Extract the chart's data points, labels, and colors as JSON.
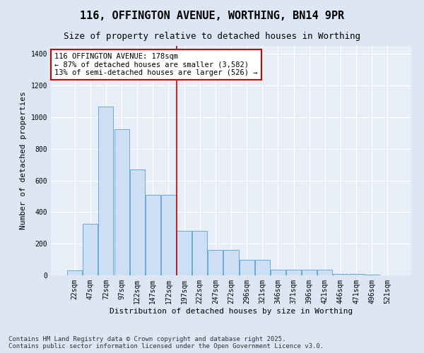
{
  "title": "116, OFFINGTON AVENUE, WORTHING, BN14 9PR",
  "subtitle": "Size of property relative to detached houses in Worthing",
  "xlabel": "Distribution of detached houses by size in Worthing",
  "ylabel": "Number of detached properties",
  "categories": [
    "22sqm",
    "47sqm",
    "72sqm",
    "97sqm",
    "122sqm",
    "147sqm",
    "172sqm",
    "197sqm",
    "222sqm",
    "247sqm",
    "272sqm",
    "296sqm",
    "321sqm",
    "346sqm",
    "371sqm",
    "396sqm",
    "421sqm",
    "446sqm",
    "471sqm",
    "496sqm",
    "521sqm"
  ],
  "values": [
    30,
    325,
    1065,
    925,
    670,
    510,
    510,
    280,
    280,
    160,
    160,
    100,
    100,
    35,
    35,
    35,
    35,
    10,
    10,
    5,
    0
  ],
  "bar_color": "#ccdff5",
  "bar_edge_color": "#6aaad4",
  "background_color": "#e8eef8",
  "grid_color": "#ffffff",
  "vline_color": "#cc0000",
  "annotation_text": "116 OFFINGTON AVENUE: 178sqm\n← 87% of detached houses are smaller (3,582)\n13% of semi-detached houses are larger (526) →",
  "annotation_box_color": "#cc0000",
  "ylim": [
    0,
    1450
  ],
  "footer": "Contains HM Land Registry data © Crown copyright and database right 2025.\nContains public sector information licensed under the Open Government Licence v3.0.",
  "title_fontsize": 11,
  "subtitle_fontsize": 9,
  "xlabel_fontsize": 8,
  "ylabel_fontsize": 8,
  "tick_fontsize": 7,
  "annotation_fontsize": 7.5,
  "footer_fontsize": 6.5
}
